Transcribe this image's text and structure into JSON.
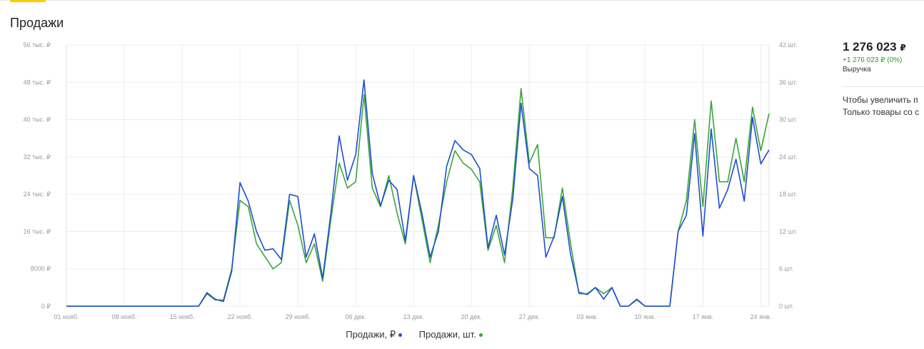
{
  "section": {
    "title": "Продажи"
  },
  "summary": {
    "value": "1 276 023",
    "currency": "₽",
    "change": "+1 276 023 ₽ (0%)",
    "label": "Выручка",
    "note_line1": "Чтобы увеличить п",
    "note_line2": "Только товары со с"
  },
  "legend": {
    "revenue": "Продажи, ₽",
    "units": "Продажи, шт."
  },
  "colors": {
    "revenue": "#1d4fd1",
    "units": "#3ba53b",
    "accent": "#ffcc00"
  },
  "chart_data": {
    "type": "line",
    "title": "Продажи",
    "x_ticks": [
      "01 нояб.",
      "08 нояб.",
      "15 нояб.",
      "22 нояб.",
      "29 нояб.",
      "06 дек.",
      "13 дек.",
      "20 дек.",
      "27 дек.",
      "03 янв.",
      "10 янв.",
      "17 янв.",
      "24 янв."
    ],
    "y_left_ticks": [
      "0 ₽",
      "8000 ₽",
      "16 тыс. ₽",
      "24 тыс. ₽",
      "32 тыс. ₽",
      "40 тыс. ₽",
      "48 тыс. ₽",
      "56 тыс. ₽"
    ],
    "y_right_ticks": [
      "0 шт.",
      "6 шт.",
      "12 шт.",
      "18 шт.",
      "24 шт.",
      "30 шт.",
      "36 шт.",
      "42 шт."
    ],
    "ylim_left": [
      0,
      56000
    ],
    "ylim_right": [
      0,
      42
    ],
    "grid": true,
    "legend_position": "bottom-center",
    "series": [
      {
        "name": "Продажи, ₽",
        "axis": "left",
        "values": [
          0,
          0,
          0,
          0,
          0,
          0,
          0,
          0,
          0,
          0,
          0,
          0,
          0,
          0,
          0,
          0,
          0,
          2900,
          1500,
          1000,
          7500,
          26500,
          22500,
          16000,
          12000,
          12300,
          10000,
          24000,
          23500,
          10500,
          15500,
          6000,
          20000,
          36500,
          27000,
          32500,
          48500,
          28500,
          21500,
          27000,
          25000,
          14000,
          28000,
          20000,
          10500,
          16000,
          30000,
          35500,
          33500,
          32500,
          29500,
          12500,
          19500,
          11000,
          23000,
          43500,
          29500,
          28000,
          10500,
          15000,
          23500,
          11000,
          3000,
          2500,
          4000,
          1500,
          4000,
          0,
          0,
          1500,
          0,
          0,
          0,
          0,
          16000,
          19500,
          37000,
          15000,
          38000,
          21000,
          25000,
          31500,
          22500,
          40500,
          30500,
          33500
        ]
      },
      {
        "name": "Продажи, шт.",
        "axis": "right",
        "values": [
          0,
          0,
          0,
          0,
          0,
          0,
          0,
          0,
          0,
          0,
          0,
          0,
          0,
          0,
          0,
          0,
          0,
          2,
          1,
          1,
          6,
          17,
          16,
          10,
          8,
          6,
          7,
          17,
          13,
          7,
          10,
          4,
          14,
          23,
          19,
          20,
          34,
          19,
          16,
          21,
          15,
          10,
          21,
          14,
          7,
          13,
          20,
          25,
          23,
          22,
          20,
          9,
          13,
          7,
          19,
          35,
          23,
          26,
          11,
          11,
          19,
          10,
          2,
          2,
          3,
          2,
          3,
          0,
          0,
          1,
          0,
          0,
          0,
          0,
          12,
          17,
          30,
          16,
          33,
          20,
          20,
          27,
          20,
          32,
          25,
          31
        ]
      }
    ]
  }
}
